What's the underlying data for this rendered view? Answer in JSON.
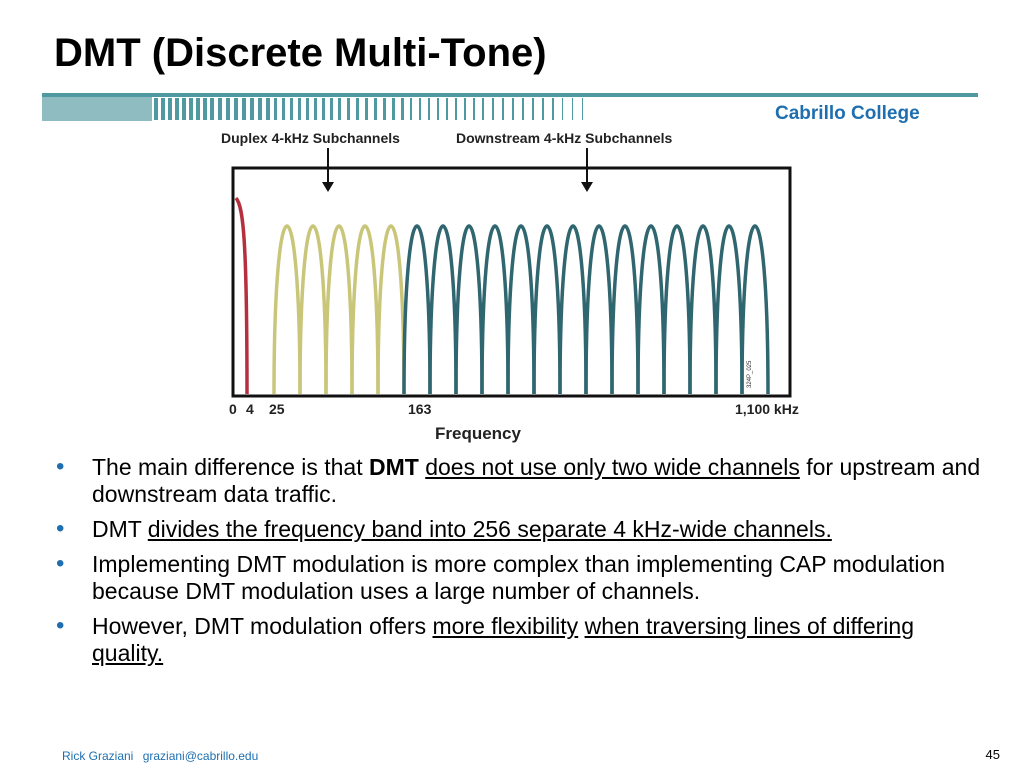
{
  "slide": {
    "title": "DMT (Discrete Multi-Tone)",
    "college": "Cabrillo College",
    "colors": {
      "accent_teal": "#4e9aa0",
      "bullet_blue": "#1f6fb0",
      "college_blue": "#1f6fb0"
    }
  },
  "figure": {
    "label_duplex": "Duplex 4-kHz Subchannels",
    "label_downstream": "Downstream 4-kHz Subchannels",
    "tick_labels": [
      "0",
      "4",
      "25",
      "163",
      "1,100 kHz"
    ],
    "axis_label": "Frequency",
    "side_code": "324P_025",
    "colors": {
      "voice": "#b5303f",
      "duplex": "#c9c67a",
      "downstream": "#2f6670"
    },
    "voice_channels": 1,
    "duplex_channels": 5,
    "downstream_channels": 14
  },
  "bullets": [
    {
      "parts": [
        {
          "text": "The main difference is that ",
          "style": ""
        },
        {
          "text": "DMT",
          "style": "b"
        },
        {
          "text": " ",
          "style": ""
        },
        {
          "text": "does not use only two wide channels",
          "style": "u"
        },
        {
          "text": " for upstream and downstream data traffic.",
          "style": ""
        }
      ]
    },
    {
      "parts": [
        {
          "text": "DMT ",
          "style": ""
        },
        {
          "text": "divides the frequency band into 256 separate 4 kHz-wide channels.",
          "style": "u"
        }
      ]
    },
    {
      "parts": [
        {
          "text": "Implementing DMT modulation is more complex than implementing CAP modulation because DMT modulation uses a large number of channels.",
          "style": ""
        }
      ]
    },
    {
      "parts": [
        {
          "text": "However, DMT modulation offers ",
          "style": ""
        },
        {
          "text": "more flexibility",
          "style": "u"
        },
        {
          "text": " ",
          "style": ""
        },
        {
          "text": "when traversing lines of differing quality.",
          "style": "u"
        }
      ]
    }
  ],
  "footer": {
    "author": "Rick Graziani",
    "email": "graziani@cabrillo.edu",
    "page_number": "45"
  }
}
